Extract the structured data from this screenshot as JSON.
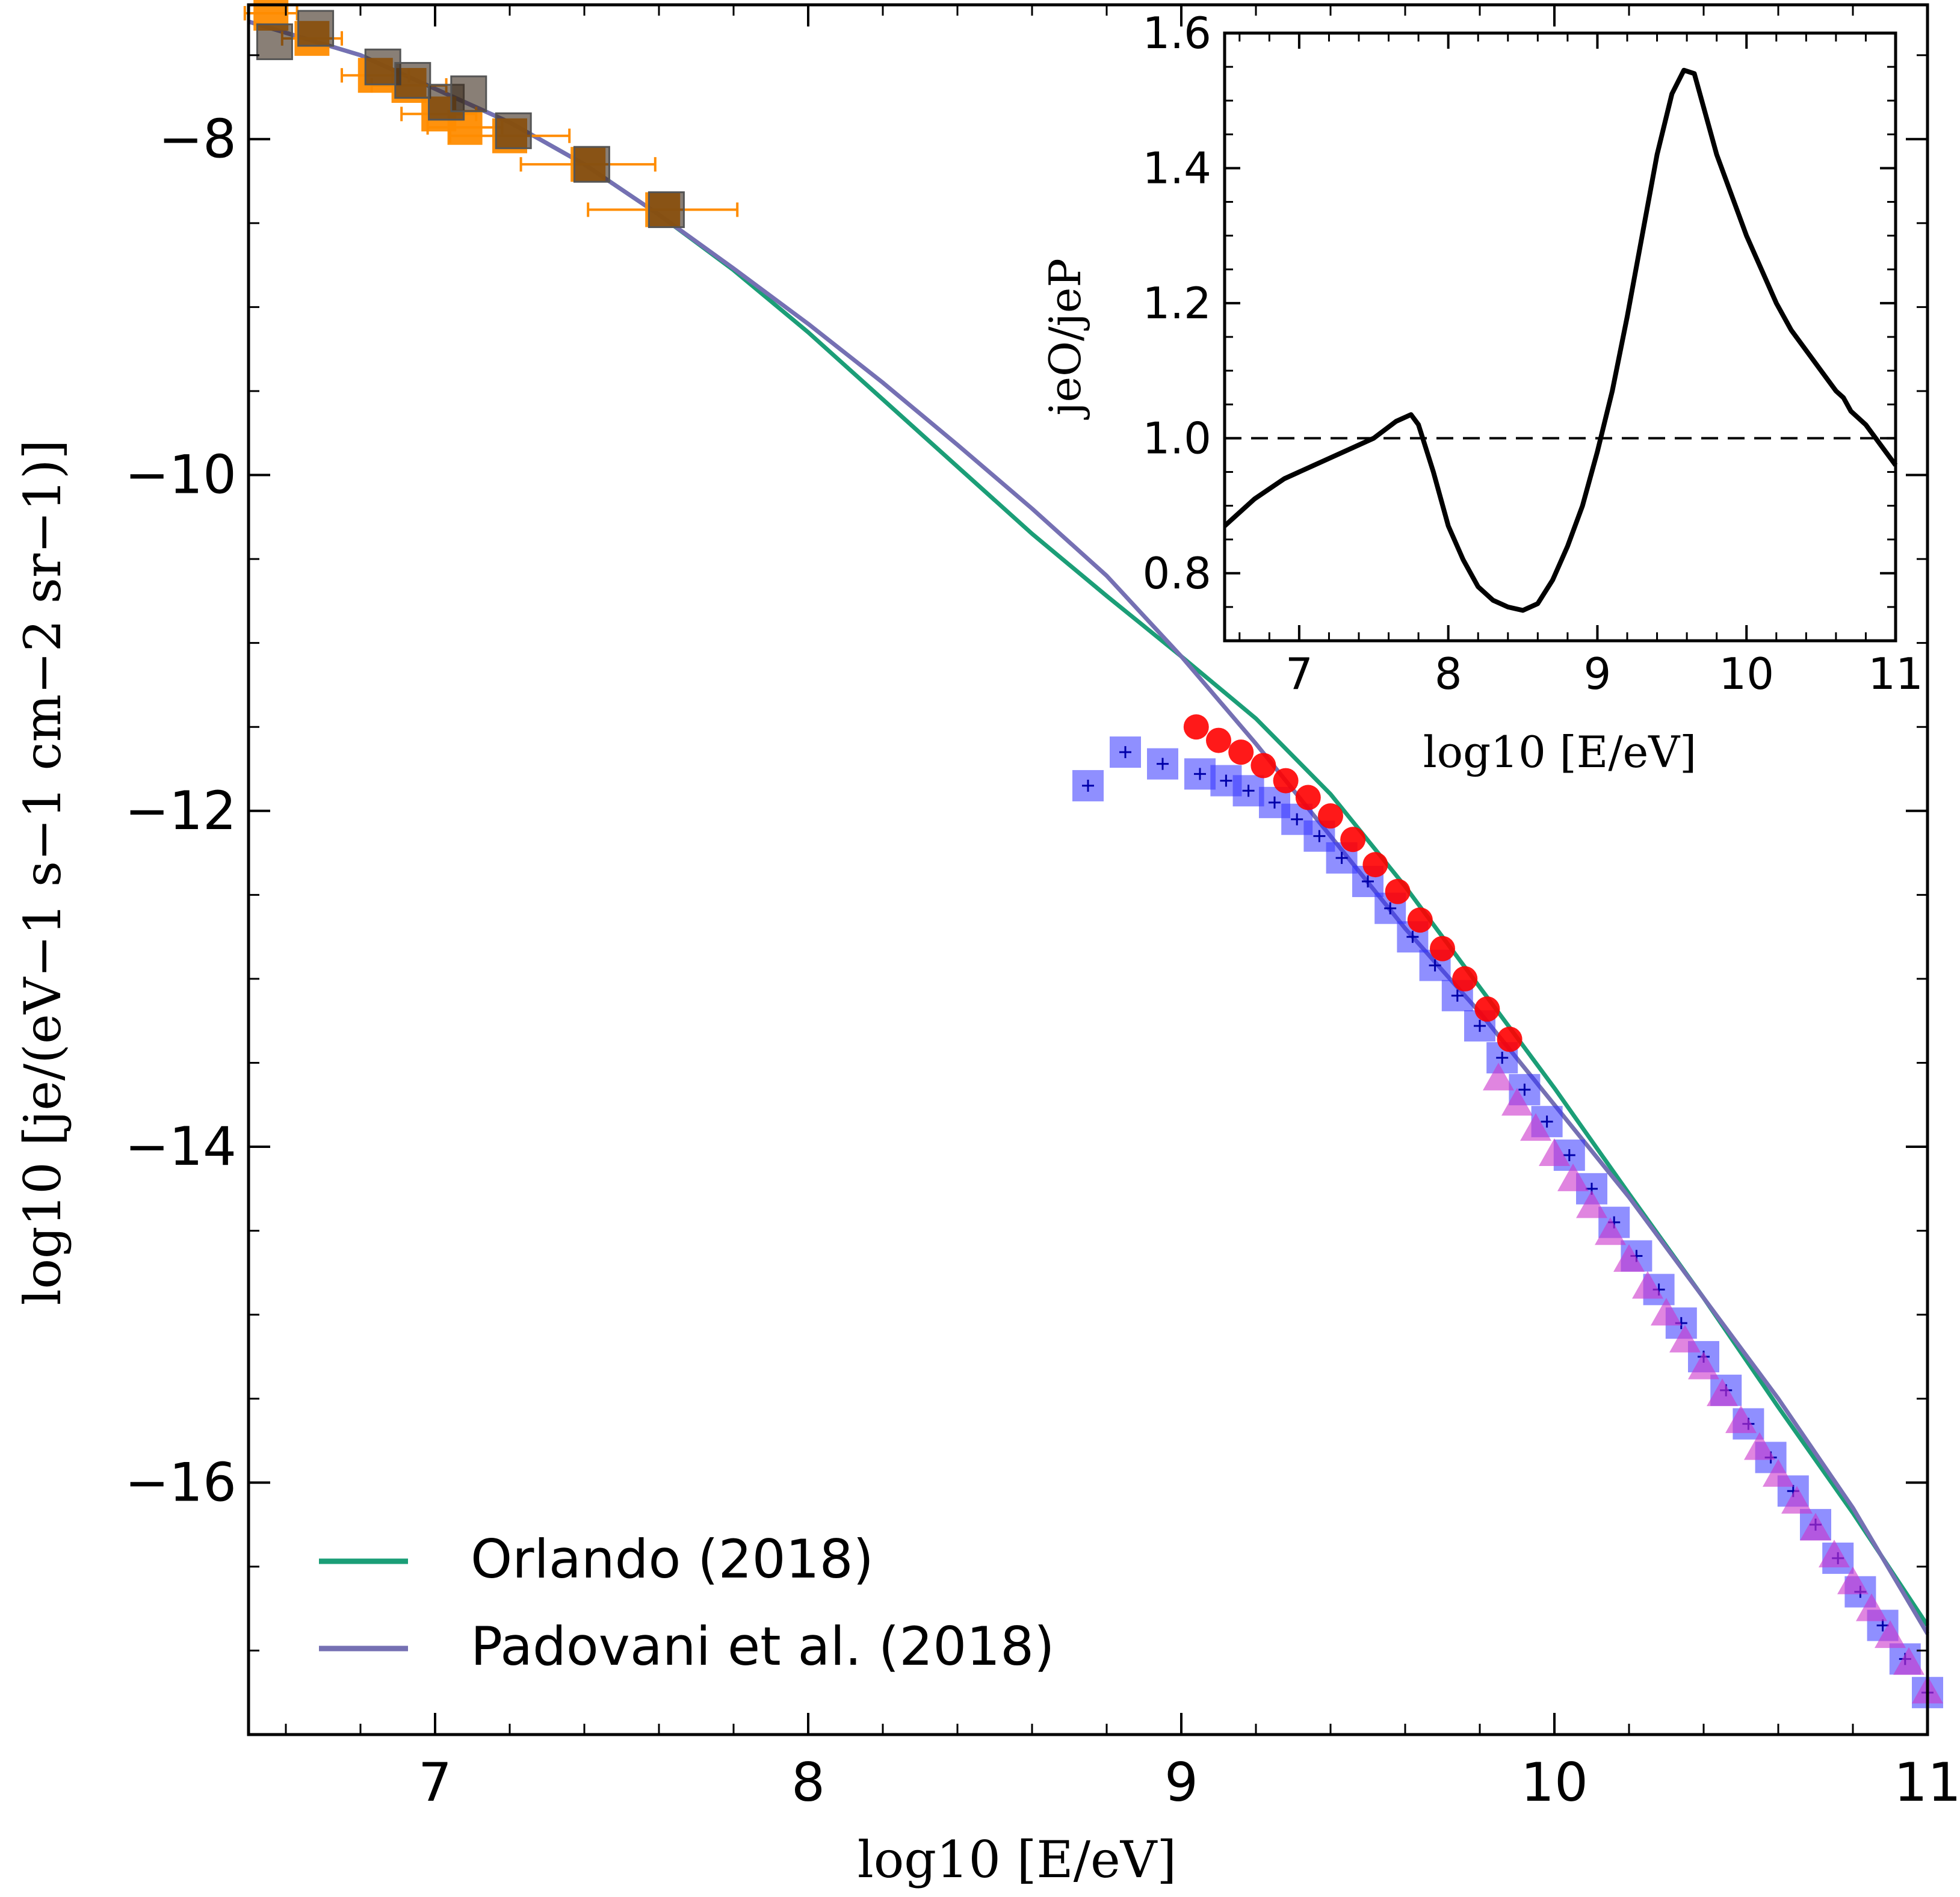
{
  "chart_data": [
    {
      "type": "line",
      "name": "main-spectrum",
      "xlabel": "log10 [E/eV]",
      "ylabel": "log10 [je/(eV−1 s−1 cm−2 sr−1)]",
      "xlim": [
        6.5,
        11.0
      ],
      "ylim": [
        -17.5,
        -7.2
      ],
      "x_ticks": [
        7,
        8,
        9,
        10,
        11
      ],
      "x_tick_labels": [
        "7",
        "8",
        "9",
        "10",
        "11"
      ],
      "y_ticks": [
        -8,
        -10,
        -12,
        -14,
        -16
      ],
      "y_tick_labels": [
        "−8",
        "−10",
        "−12",
        "−14",
        "−16"
      ],
      "legend_position": "bottom-left",
      "legend": [
        {
          "label": "Orlando (2018)",
          "color": "#1b9e77"
        },
        {
          "label": "Padovani et al. (2018)",
          "color": "#7570b3"
        }
      ],
      "series": [
        {
          "name": "Orlando (2018)",
          "kind": "line",
          "color": "#1b9e77",
          "x": [
            6.5,
            6.8,
            7.0,
            7.2,
            7.4,
            7.6,
            7.8,
            8.0,
            8.2,
            8.4,
            8.6,
            8.8,
            9.0,
            9.2,
            9.4,
            9.6,
            9.8,
            10.0,
            10.2,
            10.4,
            10.6,
            10.8,
            11.0
          ],
          "y": [
            -7.3,
            -7.5,
            -7.7,
            -7.9,
            -8.15,
            -8.45,
            -8.78,
            -9.15,
            -9.55,
            -9.95,
            -10.35,
            -10.72,
            -11.08,
            -11.45,
            -11.9,
            -12.45,
            -13.05,
            -13.65,
            -14.28,
            -14.9,
            -15.55,
            -16.18,
            -16.85
          ]
        },
        {
          "name": "Padovani et al. (2018)",
          "kind": "line",
          "color": "#7570b3",
          "x": [
            6.5,
            6.8,
            7.0,
            7.2,
            7.4,
            7.6,
            7.8,
            8.0,
            8.2,
            8.4,
            8.6,
            8.8,
            9.0,
            9.2,
            9.4,
            9.6,
            9.8,
            10.0,
            10.2,
            10.4,
            10.6,
            10.8,
            11.0
          ],
          "y": [
            -7.3,
            -7.5,
            -7.7,
            -7.9,
            -8.15,
            -8.45,
            -8.77,
            -9.1,
            -9.45,
            -9.82,
            -10.2,
            -10.6,
            -11.08,
            -11.6,
            -12.15,
            -12.7,
            -13.2,
            -13.75,
            -14.3,
            -14.9,
            -15.5,
            -16.15,
            -16.9
          ]
        },
        {
          "name": "orange-squares",
          "kind": "scatter-errorbar",
          "color": "#ff8c00",
          "x": [
            6.56,
            6.67,
            6.84,
            6.93,
            7.01,
            7.08,
            7.2,
            7.41,
            7.61
          ],
          "y": [
            -7.25,
            -7.4,
            -7.62,
            -7.68,
            -7.85,
            -7.93,
            -7.98,
            -8.15,
            -8.42
          ],
          "xerr": [
            0.07,
            0.08,
            0.09,
            0.1,
            0.1,
            0.1,
            0.16,
            0.18,
            0.2
          ]
        },
        {
          "name": "grey-squares",
          "kind": "scatter",
          "color": "#444444",
          "x": [
            6.57,
            6.68,
            6.86,
            6.94,
            7.03,
            7.09,
            7.21,
            7.42,
            7.62
          ],
          "y": [
            -7.42,
            -7.34,
            -7.57,
            -7.65,
            -7.78,
            -7.73,
            -7.95,
            -8.15,
            -8.42
          ]
        },
        {
          "name": "blue-squares",
          "kind": "scatter-errorbar",
          "color": "#3333ff",
          "x": [
            8.75,
            8.85,
            8.95,
            9.05,
            9.12,
            9.18,
            9.25,
            9.31,
            9.37,
            9.43,
            9.5,
            9.56,
            9.62,
            9.68,
            9.74,
            9.8,
            9.86,
            9.92,
            9.98,
            10.04,
            10.1,
            10.16,
            10.22,
            10.28,
            10.34,
            10.4,
            10.46,
            10.52,
            10.58,
            10.64,
            10.7,
            10.76,
            10.82,
            10.88,
            10.94,
            11.0
          ],
          "y": [
            -11.85,
            -11.65,
            -11.72,
            -11.78,
            -11.82,
            -11.88,
            -11.95,
            -12.05,
            -12.15,
            -12.28,
            -12.42,
            -12.58,
            -12.75,
            -12.92,
            -13.1,
            -13.28,
            -13.47,
            -13.66,
            -13.85,
            -14.05,
            -14.25,
            -14.45,
            -14.65,
            -14.85,
            -15.05,
            -15.25,
            -15.45,
            -15.65,
            -15.85,
            -16.05,
            -16.25,
            -16.45,
            -16.65,
            -16.85,
            -17.05,
            -17.25
          ]
        },
        {
          "name": "red-circles",
          "kind": "scatter",
          "color": "#ff0000",
          "x": [
            9.04,
            9.1,
            9.16,
            9.22,
            9.28,
            9.34,
            9.4,
            9.46,
            9.52,
            9.58,
            9.64,
            9.7,
            9.76,
            9.82,
            9.88
          ],
          "y": [
            -11.5,
            -11.58,
            -11.65,
            -11.73,
            -11.82,
            -11.92,
            -12.03,
            -12.17,
            -12.32,
            -12.48,
            -12.65,
            -12.82,
            -13.0,
            -13.18,
            -13.36
          ]
        },
        {
          "name": "magenta-triangles",
          "kind": "scatter",
          "color": "#cc33cc",
          "x": [
            9.85,
            9.9,
            9.95,
            10.0,
            10.05,
            10.1,
            10.15,
            10.2,
            10.25,
            10.3,
            10.35,
            10.4,
            10.45,
            10.5,
            10.55,
            10.6,
            10.65,
            10.7,
            10.75,
            10.8,
            10.85,
            10.9,
            10.95,
            11.0
          ],
          "y": [
            -13.6,
            -13.75,
            -13.9,
            -14.05,
            -14.2,
            -14.36,
            -14.52,
            -14.68,
            -14.84,
            -15.0,
            -15.16,
            -15.32,
            -15.48,
            -15.64,
            -15.8,
            -15.96,
            -16.12,
            -16.28,
            -16.44,
            -16.6,
            -16.76,
            -16.92,
            -17.08,
            -17.25
          ]
        }
      ]
    },
    {
      "type": "line",
      "name": "inset-ratio",
      "xlabel": "log10 [E/eV]",
      "ylabel": "jeO/jeP",
      "xlim": [
        6.5,
        11.0
      ],
      "ylim": [
        0.7,
        1.6
      ],
      "x_ticks": [
        7,
        8,
        9,
        10,
        11
      ],
      "x_tick_labels": [
        "7",
        "8",
        "9",
        "10",
        "11"
      ],
      "y_ticks": [
        0.8,
        1.0,
        1.2,
        1.4,
        1.6
      ],
      "y_tick_labels": [
        "0.8",
        "1.0",
        "1.2",
        "1.4",
        "1.6"
      ],
      "reference_line": 1.0,
      "series": [
        {
          "name": "ratio",
          "color": "#000000",
          "x": [
            6.5,
            6.7,
            6.9,
            7.1,
            7.3,
            7.5,
            7.65,
            7.75,
            7.8,
            7.9,
            8.0,
            8.1,
            8.2,
            8.3,
            8.4,
            8.5,
            8.6,
            8.7,
            8.8,
            8.9,
            9.0,
            9.1,
            9.2,
            9.3,
            9.4,
            9.5,
            9.58,
            9.65,
            9.7,
            9.8,
            9.9,
            10.0,
            10.1,
            10.2,
            10.3,
            10.5,
            10.6,
            10.65,
            10.7,
            10.8,
            10.9,
            11.0
          ],
          "y": [
            0.87,
            0.91,
            0.94,
            0.96,
            0.98,
            1.0,
            1.025,
            1.035,
            1.02,
            0.95,
            0.87,
            0.82,
            0.78,
            0.76,
            0.75,
            0.745,
            0.755,
            0.79,
            0.84,
            0.9,
            0.98,
            1.07,
            1.18,
            1.3,
            1.42,
            1.51,
            1.545,
            1.54,
            1.5,
            1.42,
            1.36,
            1.3,
            1.25,
            1.2,
            1.16,
            1.1,
            1.07,
            1.06,
            1.04,
            1.02,
            0.99,
            0.96
          ]
        }
      ]
    }
  ]
}
